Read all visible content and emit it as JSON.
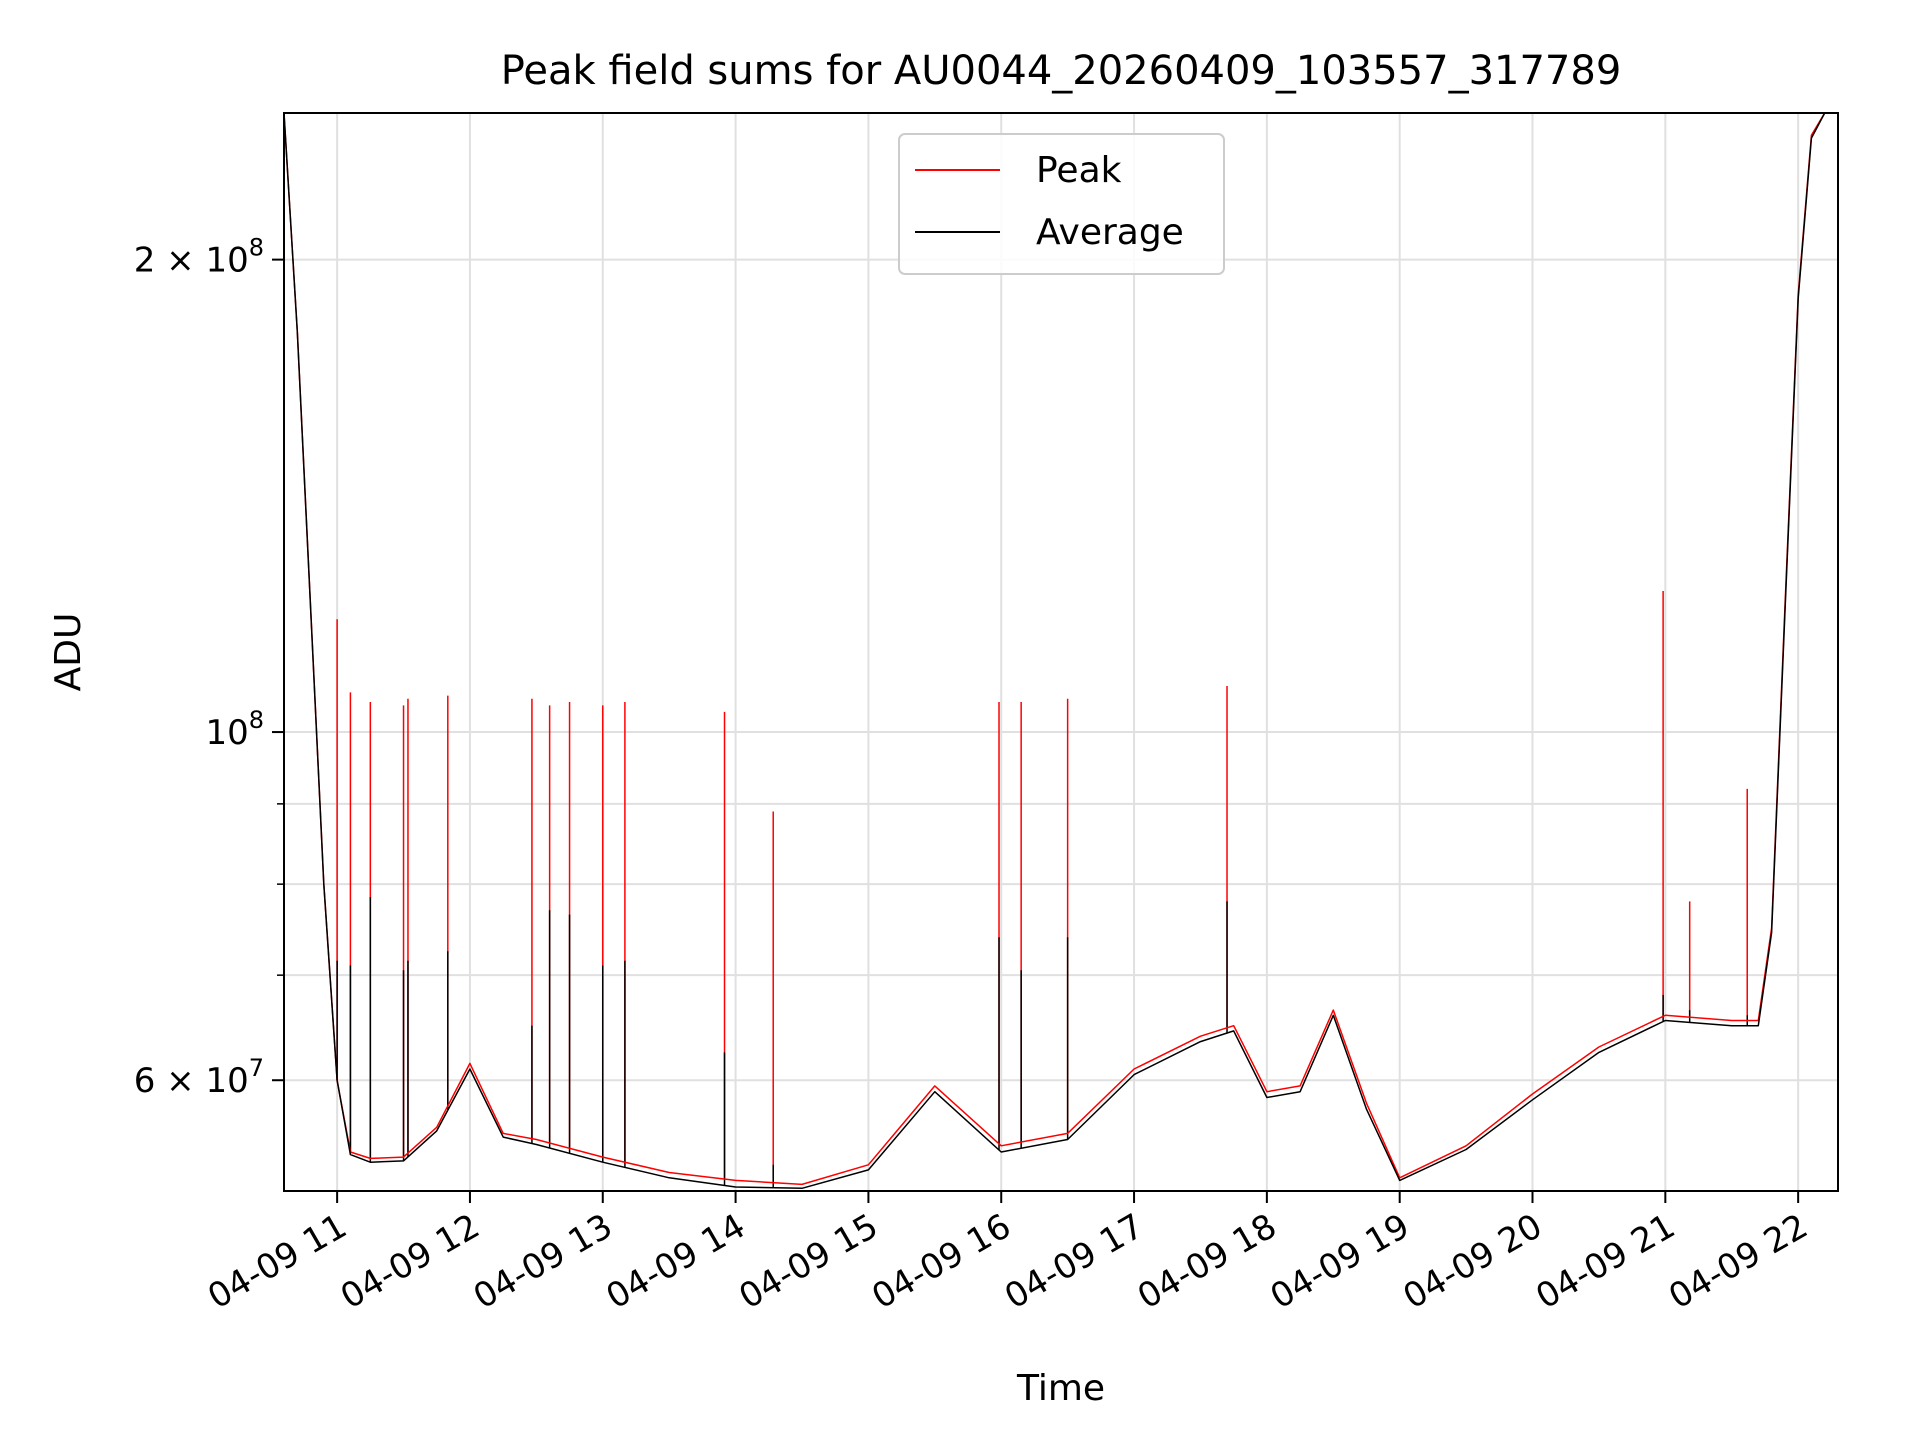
{
  "chart_data": {
    "type": "line",
    "title": "Peak field sums for AU0044_20260409_103557_317789",
    "xlabel": "Time",
    "ylabel": "ADU",
    "x_range": [
      "2026-04-09 10:36",
      "2026-04-09 22:18"
    ],
    "ylim": [
      51000000,
      248000000
    ],
    "yscale": "log",
    "grid": true,
    "legend_position": "upper center",
    "x_ticks": [
      "04-09 11",
      "04-09 12",
      "04-09 13",
      "04-09 14",
      "04-09 15",
      "04-09 16",
      "04-09 17",
      "04-09 18",
      "04-09 19",
      "04-09 20",
      "04-09 21",
      "04-09 22"
    ],
    "y_ticks": [
      {
        "value": 200000000,
        "mantissa": "2 × 10",
        "exp": "8"
      },
      {
        "value": 100000000,
        "mantissa": "10",
        "exp": "8"
      },
      {
        "value": 60000000,
        "mantissa": "6 × 10",
        "exp": "7"
      }
    ],
    "series": [
      {
        "name": "Peak",
        "color": "#ff0000",
        "x": [
          "2026-04-09 10:36",
          "2026-04-09 10:42",
          "2026-04-09 10:48",
          "2026-04-09 10:54",
          "2026-04-09 11:00",
          "2026-04-09 11:06",
          "2026-04-09 11:15",
          "2026-04-09 11:30",
          "2026-04-09 11:45",
          "2026-04-09 12:00",
          "2026-04-09 12:15",
          "2026-04-09 12:30",
          "2026-04-09 13:00",
          "2026-04-09 13:30",
          "2026-04-09 14:00",
          "2026-04-09 14:30",
          "2026-04-09 15:00",
          "2026-04-09 15:30",
          "2026-04-09 16:00",
          "2026-04-09 16:30",
          "2026-04-09 17:00",
          "2026-04-09 17:30",
          "2026-04-09 17:45",
          "2026-04-09 18:00",
          "2026-04-09 18:15",
          "2026-04-09 18:30",
          "2026-04-09 18:45",
          "2026-04-09 19:00",
          "2026-04-09 19:30",
          "2026-04-09 20:00",
          "2026-04-09 20:30",
          "2026-04-09 21:00",
          "2026-04-09 21:30",
          "2026-04-09 21:42",
          "2026-04-09 21:48",
          "2026-04-09 21:54",
          "2026-04-09 22:00",
          "2026-04-09 22:06",
          "2026-04-09 22:12"
        ],
        "y": [
          248000000,
          180000000,
          120000000,
          80000000,
          60000000,
          54000000,
          53500000,
          53600000,
          56000000,
          61500000,
          55500000,
          55000000,
          53600000,
          52400000,
          51800000,
          51500000,
          53000000,
          59500000,
          54500000,
          55500000,
          61000000,
          64000000,
          65000000,
          59000000,
          59500000,
          66500000,
          58000000,
          52000000,
          54500000,
          58800000,
          63000000,
          66000000,
          65500000,
          65500000,
          75000000,
          120000000,
          190000000,
          240000000,
          248000000
        ]
      },
      {
        "name": "Average",
        "color": "#000000",
        "x": [
          "2026-04-09 10:36",
          "2026-04-09 10:42",
          "2026-04-09 10:48",
          "2026-04-09 10:54",
          "2026-04-09 11:00",
          "2026-04-09 11:06",
          "2026-04-09 11:15",
          "2026-04-09 11:30",
          "2026-04-09 11:45",
          "2026-04-09 12:00",
          "2026-04-09 12:15",
          "2026-04-09 12:30",
          "2026-04-09 13:00",
          "2026-04-09 13:30",
          "2026-04-09 14:00",
          "2026-04-09 14:30",
          "2026-04-09 15:00",
          "2026-04-09 15:30",
          "2026-04-09 16:00",
          "2026-04-09 16:30",
          "2026-04-09 17:00",
          "2026-04-09 17:30",
          "2026-04-09 17:45",
          "2026-04-09 18:00",
          "2026-04-09 18:15",
          "2026-04-09 18:30",
          "2026-04-09 18:45",
          "2026-04-09 19:00",
          "2026-04-09 19:30",
          "2026-04-09 20:00",
          "2026-04-09 20:30",
          "2026-04-09 21:00",
          "2026-04-09 21:30",
          "2026-04-09 21:42",
          "2026-04-09 21:48",
          "2026-04-09 21:54",
          "2026-04-09 22:00",
          "2026-04-09 22:06",
          "2026-04-09 22:12"
        ],
        "y": [
          248000000,
          180000000,
          120000000,
          80000000,
          60000000,
          53800000,
          53200000,
          53300000,
          55700000,
          61000000,
          55200000,
          54600000,
          53200000,
          52000000,
          51300000,
          51200000,
          52600000,
          59000000,
          54000000,
          55000000,
          60500000,
          63500000,
          64500000,
          58500000,
          59000000,
          66000000,
          57500000,
          51800000,
          54200000,
          58300000,
          62500000,
          65500000,
          65000000,
          65000000,
          74500000,
          119000000,
          189000000,
          239000000,
          248000000
        ]
      }
    ],
    "spikes": {
      "x": [
        "2026-04-09 11:00",
        "2026-04-09 11:06",
        "2026-04-09 11:15",
        "2026-04-09 11:30",
        "2026-04-09 11:32",
        "2026-04-09 11:50",
        "2026-04-09 12:28",
        "2026-04-09 12:36",
        "2026-04-09 12:45",
        "2026-04-09 13:00",
        "2026-04-09 13:10",
        "2026-04-09 13:55",
        "2026-04-09 14:17",
        "2026-04-09 15:59",
        "2026-04-09 16:09",
        "2026-04-09 16:30",
        "2026-04-09 17:42",
        "2026-04-09 20:59",
        "2026-04-09 21:11",
        "2026-04-09 21:37"
      ],
      "peak": [
        118000000,
        106000000,
        104500000,
        104000000,
        105000000,
        105500000,
        105000000,
        104000000,
        104500000,
        104000000,
        104500000,
        103000000,
        89000000,
        104500000,
        104500000,
        105000000,
        107000000,
        123000000,
        78000000,
        92000000
      ],
      "average": [
        71500000,
        71000000,
        78500000,
        70500000,
        71500000,
        72500000,
        65000000,
        77000000,
        76500000,
        71000000,
        71500000,
        62500000,
        53000000,
        74000000,
        70500000,
        74000000,
        78000000,
        68000000,
        66500000,
        66000000
      ]
    }
  }
}
